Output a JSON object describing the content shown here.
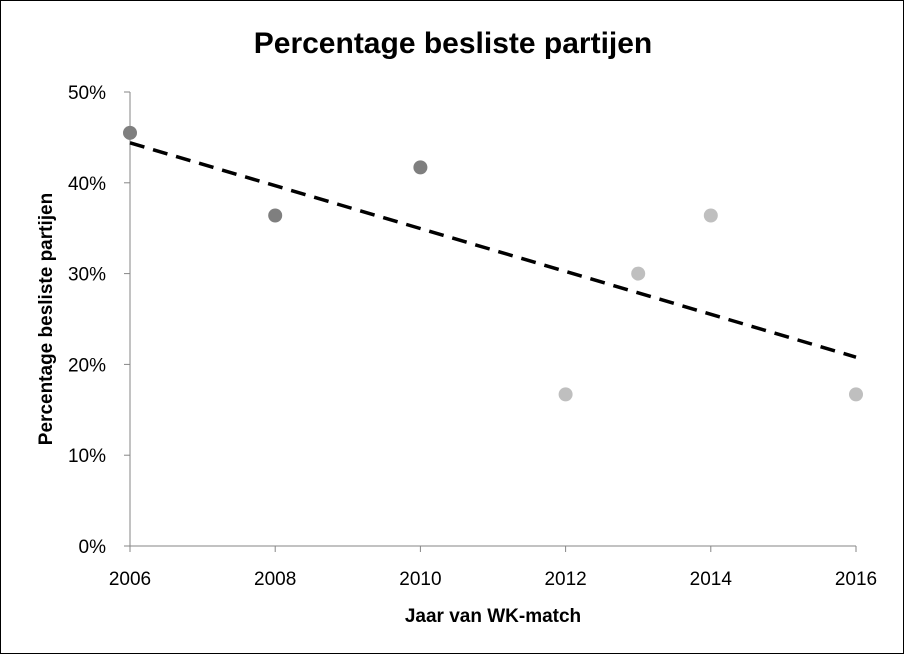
{
  "chart_data": {
    "type": "scatter",
    "title": "Percentage besliste partijen",
    "xlabel": "Jaar van WK-match",
    "ylabel": "Percentage besliste partijen",
    "xlim": [
      2006,
      2016
    ],
    "ylim": [
      0,
      0.5
    ],
    "x_ticks": [
      2006,
      2008,
      2010,
      2012,
      2014,
      2016
    ],
    "x_tick_labels": [
      "2006",
      "2008",
      "2010",
      "2012",
      "2014",
      "2016"
    ],
    "y_ticks": [
      0,
      0.1,
      0.2,
      0.3,
      0.4,
      0.5
    ],
    "y_tick_labels": [
      "0%",
      "10%",
      "20%",
      "30%",
      "40%",
      "50%"
    ],
    "grid": false,
    "legend": "none",
    "points": [
      {
        "x": 2006,
        "y": 0.455,
        "color": "#7f7f7f"
      },
      {
        "x": 2008,
        "y": 0.364,
        "color": "#7f7f7f"
      },
      {
        "x": 2010,
        "y": 0.417,
        "color": "#7f7f7f"
      },
      {
        "x": 2012,
        "y": 0.167,
        "color": "#bfbfbf"
      },
      {
        "x": 2013,
        "y": 0.3,
        "color": "#bfbfbf"
      },
      {
        "x": 2014,
        "y": 0.364,
        "color": "#bfbfbf"
      },
      {
        "x": 2016,
        "y": 0.167,
        "color": "#bfbfbf"
      }
    ],
    "trendline": {
      "style": "dashed",
      "color": "#000000",
      "x": [
        2006,
        2016
      ],
      "y": [
        0.444,
        0.208
      ]
    }
  }
}
